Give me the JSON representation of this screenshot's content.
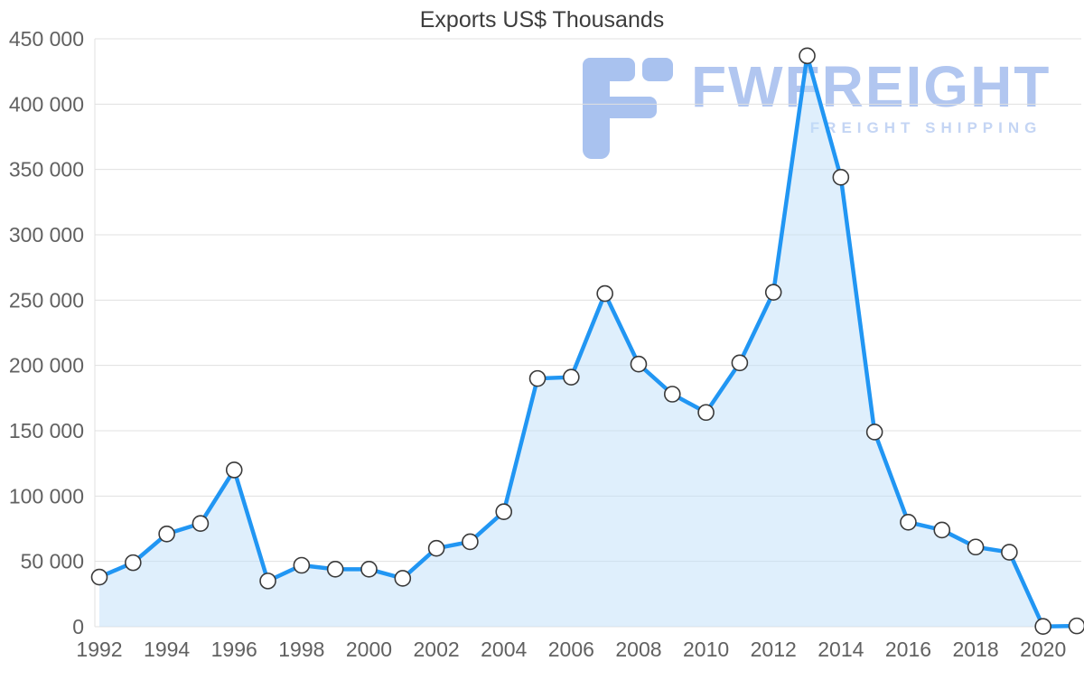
{
  "chart_data": {
    "type": "area",
    "title": "Exports US$ Thousands",
    "xlabel": "",
    "ylabel": "",
    "x": [
      1992,
      1993,
      1994,
      1995,
      1996,
      1997,
      1998,
      1999,
      2000,
      2001,
      2002,
      2003,
      2004,
      2005,
      2006,
      2007,
      2008,
      2009,
      2010,
      2011,
      2012,
      2013,
      2014,
      2015,
      2016,
      2017,
      2018,
      2019,
      2020,
      2021
    ],
    "values": [
      38000,
      49000,
      71000,
      79000,
      120000,
      35000,
      47000,
      44000,
      44000,
      37000,
      60000,
      65000,
      88000,
      190000,
      191000,
      255000,
      201000,
      178000,
      164000,
      202000,
      256000,
      437000,
      344000,
      149000,
      80000,
      74000,
      61000,
      57000,
      200,
      600
    ],
    "x_tick_labels": [
      "1992",
      "1994",
      "1996",
      "1998",
      "2000",
      "2002",
      "2004",
      "2006",
      "2008",
      "2010",
      "2012",
      "2014",
      "2016",
      "2018",
      "2020"
    ],
    "y_ticks": [
      0,
      50000,
      100000,
      150000,
      200000,
      250000,
      300000,
      350000,
      400000,
      450000
    ],
    "y_tick_labels": [
      "0",
      "50 000",
      "100 000",
      "150 000",
      "200 000",
      "250 000",
      "300 000",
      "350 000",
      "400 000",
      "450 000"
    ],
    "ylim": [
      0,
      450000
    ],
    "grid": "horizontal",
    "legend": "none",
    "colors": {
      "line": "#2196f3",
      "fill": "#bfdffa",
      "marker_fill": "#ffffff",
      "marker_stroke": "#3a3a3a",
      "grid": "#e0e0e0",
      "axis_text": "#616161",
      "title_text": "#3d3d3d"
    }
  },
  "watermark": {
    "brand": "FWFREIGHT",
    "tagline": "FREIGHT SHIPPING",
    "brand_color": "#b1c6f0",
    "tagline_color": "#c4d5f4",
    "logo_color": "#a9c2ef"
  }
}
